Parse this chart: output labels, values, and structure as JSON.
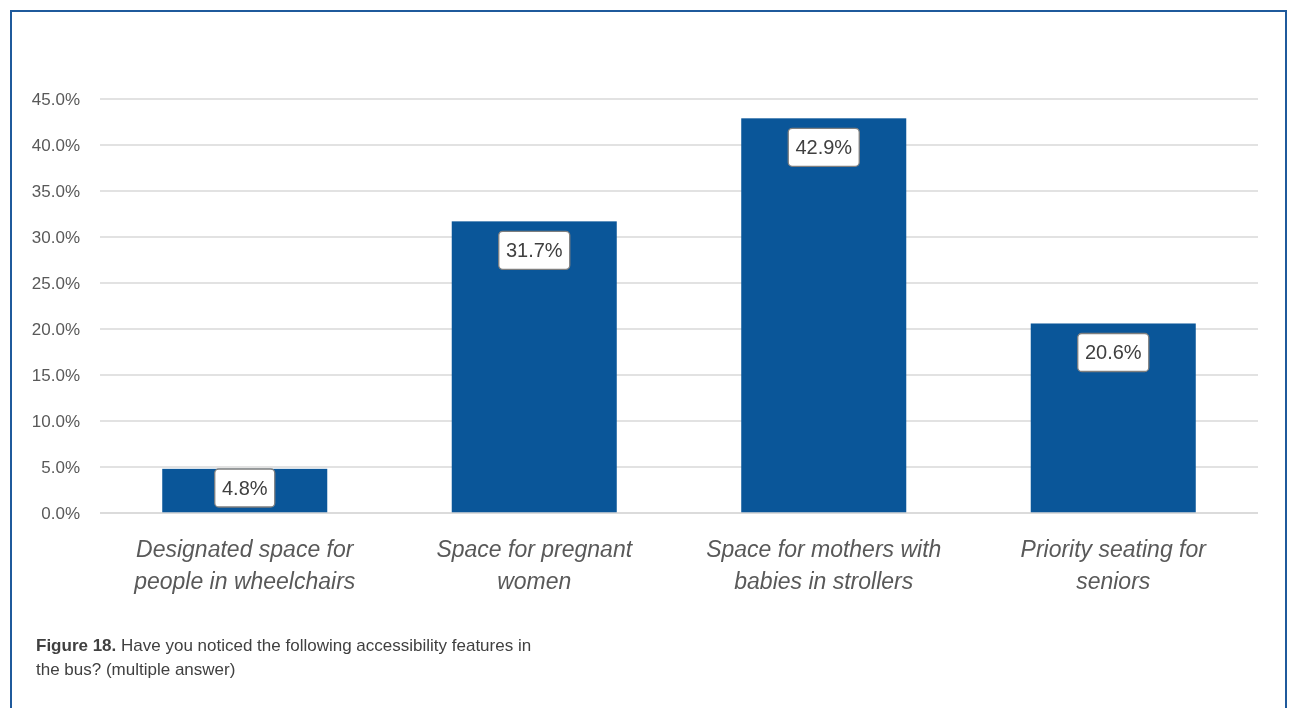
{
  "chart_data": {
    "type": "bar",
    "categories": [
      "Designated space for people in wheelchairs",
      "Space for pregnant women",
      "Space for mothers with babies in strollers",
      "Priority seating for seniors"
    ],
    "values": [
      4.8,
      31.7,
      42.9,
      20.6
    ],
    "value_labels": [
      "4.8%",
      "31.7%",
      "42.9%",
      "20.6%"
    ],
    "color": "#0a5699",
    "ylim": [
      0,
      45
    ],
    "yticks": [
      {
        "value": 0,
        "label": "0.0%"
      },
      {
        "value": 5,
        "label": "5.0%"
      },
      {
        "value": 10,
        "label": "10.0%"
      },
      {
        "value": 15,
        "label": "15.0%"
      },
      {
        "value": 20,
        "label": "20.0%"
      },
      {
        "value": 25,
        "label": "25.0%"
      },
      {
        "value": 30,
        "label": "30.0%"
      },
      {
        "value": 35,
        "label": "35.0%"
      },
      {
        "value": 40,
        "label": "40.0%"
      },
      {
        "value": 45,
        "label": "45.0%"
      }
    ],
    "grid": "y",
    "annotations": [
      "Figure 18. Have you noticed the following accessibility features in the bus? (multiple answer)"
    ]
  }
}
